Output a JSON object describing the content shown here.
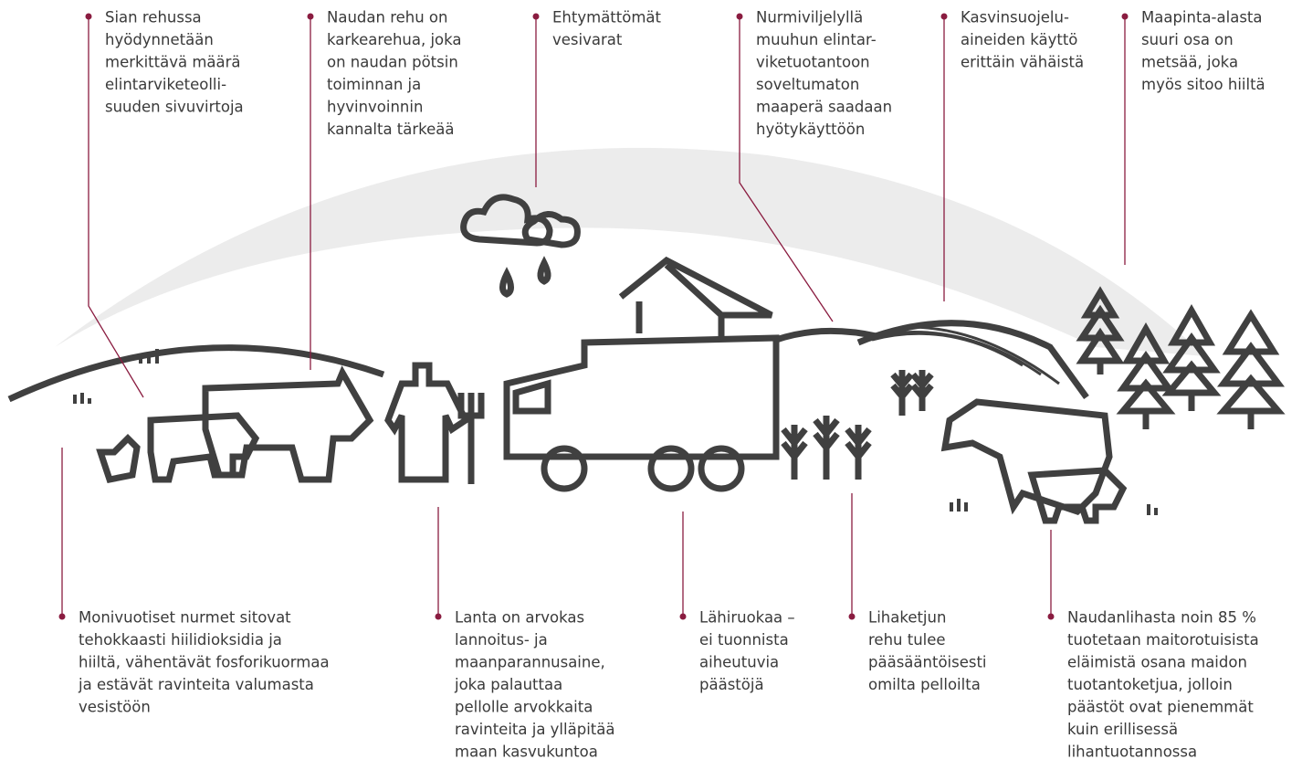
{
  "annotations_top": [
    {
      "lines": [
        "Sian rehussa",
        "hyödynnetään",
        "merkittävä määrä",
        "elintarviketeolli-",
        "suuden sivuvirtoja"
      ]
    },
    {
      "lines": [
        "Naudan rehu on",
        "karkearehua, joka",
        "on naudan pötsin",
        "toiminnan ja",
        "hyvinvoinnin",
        "kannalta tärkeää"
      ]
    },
    {
      "lines": [
        "Ehtymättömät",
        "vesivarat"
      ]
    },
    {
      "lines": [
        "Nurmiviljelyllä",
        "muuhun elintar-",
        "viketuotantoon",
        "soveltumaton",
        "maaperä saadaan",
        "hyötykäyttöön"
      ]
    },
    {
      "lines": [
        "Kasvinsuojelu-",
        "aineiden käyttö",
        "erittäin vähäistä"
      ]
    },
    {
      "lines": [
        "Maapinta-alasta",
        "suuri osa on",
        "metsää, joka",
        "myös sitoo hiiltä"
      ]
    }
  ],
  "annotations_bottom": [
    {
      "lines": [
        "Monivuotiset nurmet sitovat",
        "tehokkaasti hiilidioksidia ja",
        "hiiltä, vähentävät fosforikuormaa",
        "ja estävät ravinteita valumasta",
        "vesistöön"
      ]
    },
    {
      "lines": [
        "Lanta on arvokas",
        "lannoitus- ja",
        "maanparannusaine,",
        "joka palauttaa",
        "pellolle arvokkaita",
        "ravinteita ja ylläpitää",
        "maan kasvukuntoa"
      ]
    },
    {
      "lines": [
        "Lähiruokaa –",
        "ei tuonnista",
        "aiheutuvia",
        "päästöjä"
      ]
    },
    {
      "lines": [
        "Lihaketjun",
        "rehu tulee",
        "pääsääntöisesti",
        "omilta pelloilta"
      ]
    },
    {
      "lines": [
        "Naudanlihasta noin 85 %",
        "tuotetaan maitorotuisista",
        "eläimistä osana maidon",
        "tuotantoketjua, jolloin",
        "päästöt ovat pienemmät",
        "kuin erillisessä",
        "lihantuotannossa"
      ]
    }
  ]
}
